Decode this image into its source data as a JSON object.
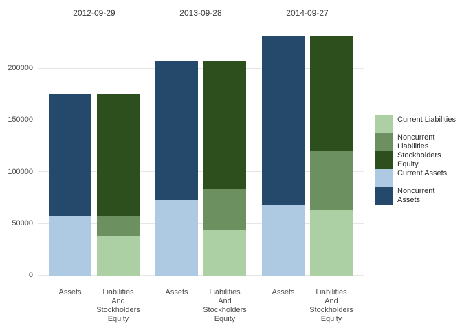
{
  "figure": {
    "background": "#ffffff",
    "gridline_color": "#e6e6e6",
    "axis_text_color": "#4d4d4d"
  },
  "chart_data": {
    "type": "bar",
    "stacked": true,
    "orientation": "vertical",
    "grid": "horizontal-only",
    "legend_position": "right",
    "facet_titles": [
      "2012-09-29",
      "2013-09-28",
      "2014-09-27"
    ],
    "categories": [
      {
        "label": "Assets",
        "lines": [
          "Assets"
        ]
      },
      {
        "label": "Liabilities And Stockholders Equity",
        "lines": [
          "Liabilities",
          "And",
          "Stockholders",
          "Equity"
        ]
      }
    ],
    "y_axis": {
      "ticks": [
        0,
        50000,
        100000,
        150000,
        200000
      ],
      "tick_labels": [
        "0",
        "50000",
        "100000",
        "150000",
        "200000"
      ],
      "ylim": [
        0,
        243000
      ]
    },
    "series_colors": {
      "Current Liabilities": "#adcfa4",
      "Noncurrent Liabilities": "#6c9060",
      "Stockholders Equity": "#2d4f1e",
      "Current Assets": "#aecae3",
      "Noncurrent Assets": "#24496b"
    },
    "legend": [
      {
        "label": "Current Liabilities",
        "color": "#adcfa4"
      },
      {
        "label": "Noncurrent Liabilities",
        "color": "#6c9060"
      },
      {
        "label": "Stockholders Equity",
        "color": "#2d4f1e"
      },
      {
        "label": "Current Assets",
        "color": "#aecae3"
      },
      {
        "label": "Noncurrent Assets",
        "color": "#24496b"
      }
    ],
    "facets": [
      {
        "title": "2012-09-29",
        "bars": [
          {
            "category": "Assets",
            "segments": [
              {
                "series": "Current Assets",
                "value": 57653
              },
              {
                "series": "Noncurrent Assets",
                "value": 118411
              }
            ],
            "total": 176064
          },
          {
            "category": "Liabilities And Stockholders Equity",
            "segments": [
              {
                "series": "Current Liabilities",
                "value": 38542
              },
              {
                "series": "Noncurrent Liabilities",
                "value": 19312
              },
              {
                "series": "Stockholders Equity",
                "value": 118210
              }
            ],
            "total": 176064
          }
        ]
      },
      {
        "title": "2013-09-28",
        "bars": [
          {
            "category": "Assets",
            "segments": [
              {
                "series": "Current Assets",
                "value": 73286
              },
              {
                "series": "Noncurrent Assets",
                "value": 133714
              }
            ],
            "total": 207000
          },
          {
            "category": "Liabilities And Stockholders Equity",
            "segments": [
              {
                "series": "Current Liabilities",
                "value": 43658
              },
              {
                "series": "Noncurrent Liabilities",
                "value": 39793
              },
              {
                "series": "Stockholders Equity",
                "value": 123549
              }
            ],
            "total": 207000
          }
        ]
      },
      {
        "title": "2014-09-27",
        "bars": [
          {
            "category": "Assets",
            "segments": [
              {
                "series": "Current Assets",
                "value": 68531
              },
              {
                "series": "Noncurrent Assets",
                "value": 163308
              }
            ],
            "total": 231839
          },
          {
            "category": "Liabilities And Stockholders Equity",
            "segments": [
              {
                "series": "Current Liabilities",
                "value": 63448
              },
              {
                "series": "Noncurrent Liabilities",
                "value": 56844
              },
              {
                "series": "Stockholders Equity",
                "value": 111547
              }
            ],
            "total": 231839
          }
        ]
      }
    ]
  }
}
